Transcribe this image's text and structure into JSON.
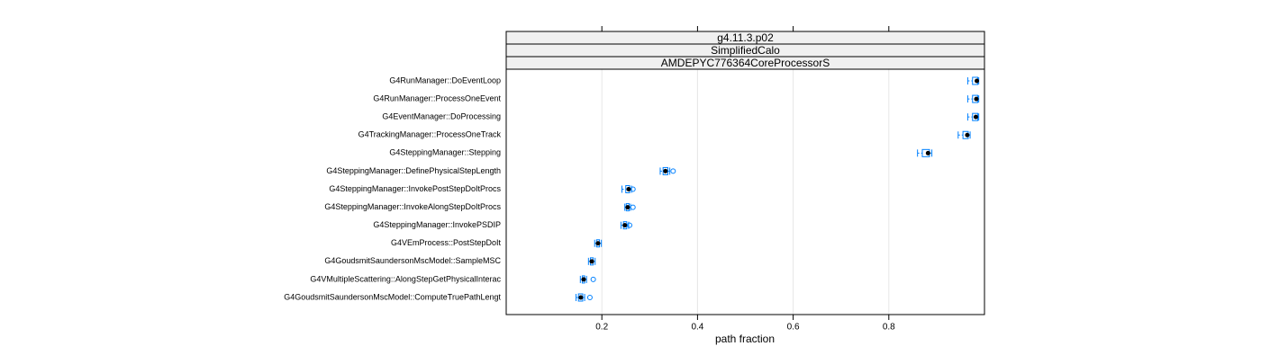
{
  "chart_data": {
    "type": "box",
    "strips": [
      "g4.11.3.p02",
      "SimplifiedCalo",
      "AMDEPYC776364CoreProcessorS"
    ],
    "xlabel": "path fraction",
    "categories": [
      "G4RunManager::DoEventLoop",
      "G4RunManager::ProcessOneEvent",
      "G4EventManager::DoProcessing",
      "G4TrackingManager::ProcessOneTrack",
      "G4SteppingManager::Stepping",
      "G4SteppingManager::DefinePhysicalStepLength",
      "G4SteppingManager::InvokePostStepDoItProcs",
      "G4SteppingManager::InvokeAlongStepDoItProcs",
      "G4SteppingManager::InvokePSDIP",
      "G4VEmProcess::PostStepDoIt",
      "G4GoudsmitSaundersonMscModel::SampleMSC",
      "G4VMultipleScattering::AlongStepGetPhysicalInterac",
      "G4GoudsmitSaundersonMscModel::ComputeTruePathLengt"
    ],
    "stats": [
      {
        "min": 0.965,
        "q1": 0.975,
        "median": 0.984,
        "q3": 0.986,
        "max": 0.988,
        "outliers": []
      },
      {
        "min": 0.965,
        "q1": 0.975,
        "median": 0.983,
        "q3": 0.986,
        "max": 0.988,
        "outliers": []
      },
      {
        "min": 0.965,
        "q1": 0.975,
        "median": 0.982,
        "q3": 0.986,
        "max": 0.988,
        "outliers": []
      },
      {
        "min": 0.945,
        "q1": 0.955,
        "median": 0.964,
        "q3": 0.966,
        "max": 0.97,
        "outliers": []
      },
      {
        "min": 0.86,
        "q1": 0.87,
        "median": 0.882,
        "q3": 0.885,
        "max": 0.89,
        "outliers": []
      },
      {
        "min": 0.322,
        "q1": 0.328,
        "median": 0.333,
        "q3": 0.338,
        "max": 0.342,
        "outliers": [
          0.349
        ]
      },
      {
        "min": 0.242,
        "q1": 0.25,
        "median": 0.256,
        "q3": 0.258,
        "max": 0.262,
        "outliers": [
          0.265
        ]
      },
      {
        "min": 0.248,
        "q1": 0.251,
        "median": 0.254,
        "q3": 0.257,
        "max": 0.26,
        "outliers": [
          0.265
        ]
      },
      {
        "min": 0.24,
        "q1": 0.245,
        "median": 0.248,
        "q3": 0.252,
        "max": 0.256,
        "outliers": [
          0.258
        ]
      },
      {
        "min": 0.185,
        "q1": 0.189,
        "median": 0.192,
        "q3": 0.195,
        "max": 0.199,
        "outliers": []
      },
      {
        "min": 0.172,
        "q1": 0.176,
        "median": 0.179,
        "q3": 0.182,
        "max": 0.186,
        "outliers": []
      },
      {
        "min": 0.155,
        "q1": 0.159,
        "median": 0.162,
        "q3": 0.164,
        "max": 0.168,
        "outliers": [
          0.182
        ]
      },
      {
        "min": 0.146,
        "q1": 0.151,
        "median": 0.156,
        "q3": 0.16,
        "max": 0.164,
        "outliers": [
          0.175
        ]
      }
    ],
    "box_color": "#0080ff",
    "median_color": "#000000",
    "xlim": [
      0,
      1
    ],
    "xticks": [
      0.2,
      0.4,
      0.6,
      0.8
    ],
    "grid": true
  }
}
